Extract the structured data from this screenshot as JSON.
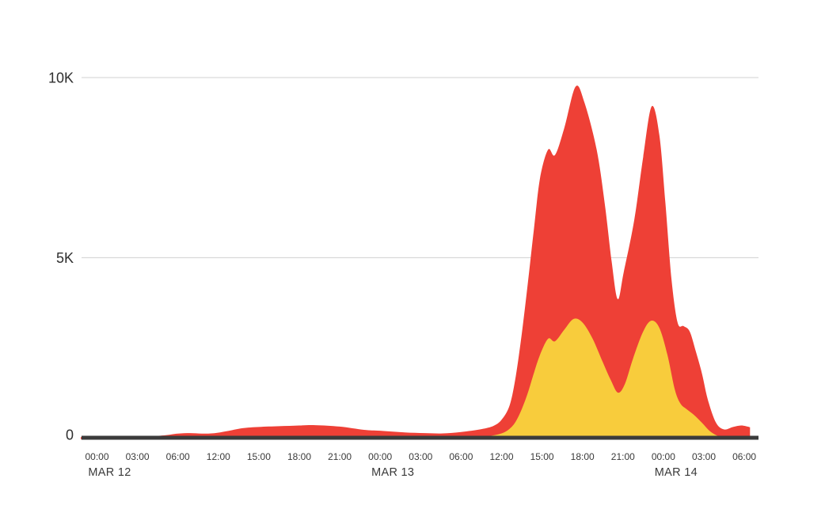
{
  "page": {
    "background": "#ffffff"
  },
  "chart_data": {
    "type": "area",
    "title": "",
    "legend": "none",
    "x_axis": {
      "tick_labels": [
        "00:00",
        "03:00",
        "06:00",
        "12:00",
        "15:00",
        "18:00",
        "21:00",
        "00:00",
        "03:00",
        "06:00",
        "12:00",
        "15:00",
        "18:00",
        "21:00",
        "00:00",
        "03:00",
        "06:00"
      ],
      "day_labels": [
        {
          "label": "MAR 12",
          "tick_index": 0
        },
        {
          "label": "MAR 13",
          "tick_index": 7
        },
        {
          "label": "MAR 14",
          "tick_index": 14
        }
      ]
    },
    "y_axis": {
      "tick_labels": [
        "0",
        "5K",
        "10K"
      ],
      "tick_values": [
        0,
        5000,
        10000
      ],
      "range": [
        0,
        11000
      ],
      "grid": true
    },
    "series": [
      {
        "name": "red-series",
        "color": "#ee4036",
        "x_unit": "tick-index (0 = MAR 12 00:00 tick)",
        "y_unit": "count",
        "points": [
          [
            -0.4,
            25
          ],
          [
            0,
            25
          ],
          [
            0.7,
            30
          ],
          [
            1.3,
            40
          ],
          [
            1.7,
            70
          ],
          [
            2.0,
            115
          ],
          [
            2.3,
            130
          ],
          [
            2.6,
            115
          ],
          [
            2.9,
            125
          ],
          [
            3.2,
            180
          ],
          [
            3.6,
            265
          ],
          [
            4.0,
            300
          ],
          [
            4.5,
            320
          ],
          [
            5.0,
            340
          ],
          [
            5.4,
            350
          ],
          [
            6.0,
            310
          ],
          [
            6.6,
            220
          ],
          [
            7.0,
            195
          ],
          [
            7.6,
            150
          ],
          [
            8.1,
            130
          ],
          [
            8.55,
            120
          ],
          [
            9.0,
            160
          ],
          [
            9.5,
            240
          ],
          [
            9.8,
            330
          ],
          [
            10.0,
            500
          ],
          [
            10.2,
            900
          ],
          [
            10.35,
            1700
          ],
          [
            10.5,
            2900
          ],
          [
            10.65,
            4300
          ],
          [
            10.8,
            5800
          ],
          [
            10.95,
            7200
          ],
          [
            11.15,
            8000
          ],
          [
            11.32,
            7850
          ],
          [
            11.55,
            8600
          ],
          [
            11.83,
            9750
          ],
          [
            12.05,
            9300
          ],
          [
            12.35,
            8000
          ],
          [
            12.55,
            6500
          ],
          [
            12.72,
            4900
          ],
          [
            12.87,
            3850
          ],
          [
            13.02,
            4600
          ],
          [
            13.28,
            6050
          ],
          [
            13.5,
            7800
          ],
          [
            13.71,
            9200
          ],
          [
            13.9,
            8400
          ],
          [
            14.05,
            6500
          ],
          [
            14.2,
            4400
          ],
          [
            14.35,
            3200
          ],
          [
            14.5,
            3100
          ],
          [
            14.65,
            2950
          ],
          [
            14.8,
            2400
          ],
          [
            14.95,
            1800
          ],
          [
            15.1,
            1050
          ],
          [
            15.3,
            420
          ],
          [
            15.5,
            230
          ],
          [
            15.72,
            300
          ],
          [
            15.92,
            340
          ],
          [
            16.08,
            310
          ],
          [
            16.14,
            290
          ]
        ]
      },
      {
        "name": "yellow-series",
        "color": "#f8cc3c",
        "x_unit": "tick-index (0 = MAR 12 00:00 tick)",
        "y_unit": "count",
        "points": [
          [
            8.9,
            0
          ],
          [
            9.3,
            15
          ],
          [
            9.7,
            50
          ],
          [
            10.0,
            120
          ],
          [
            10.2,
            250
          ],
          [
            10.35,
            450
          ],
          [
            10.5,
            800
          ],
          [
            10.65,
            1250
          ],
          [
            10.8,
            1800
          ],
          [
            10.95,
            2300
          ],
          [
            11.15,
            2750
          ],
          [
            11.32,
            2680
          ],
          [
            11.55,
            3000
          ],
          [
            11.78,
            3300
          ],
          [
            12.0,
            3200
          ],
          [
            12.25,
            2750
          ],
          [
            12.5,
            2100
          ],
          [
            12.7,
            1600
          ],
          [
            12.88,
            1250
          ],
          [
            13.05,
            1500
          ],
          [
            13.25,
            2200
          ],
          [
            13.5,
            2950
          ],
          [
            13.7,
            3250
          ],
          [
            13.9,
            3050
          ],
          [
            14.1,
            2300
          ],
          [
            14.28,
            1350
          ],
          [
            14.42,
            950
          ],
          [
            14.58,
            790
          ],
          [
            14.75,
            640
          ],
          [
            14.95,
            420
          ],
          [
            15.15,
            180
          ],
          [
            15.35,
            50
          ],
          [
            15.55,
            0
          ]
        ]
      }
    ],
    "colors": {
      "red_area": "#ee4036",
      "yellow_area": "#f8cc3c",
      "gridline": "#d9d9d9",
      "axis_line": "#3b3b3b",
      "y_label_text": "#2f2f2f",
      "x_label_text": "#3a3a3a"
    }
  }
}
